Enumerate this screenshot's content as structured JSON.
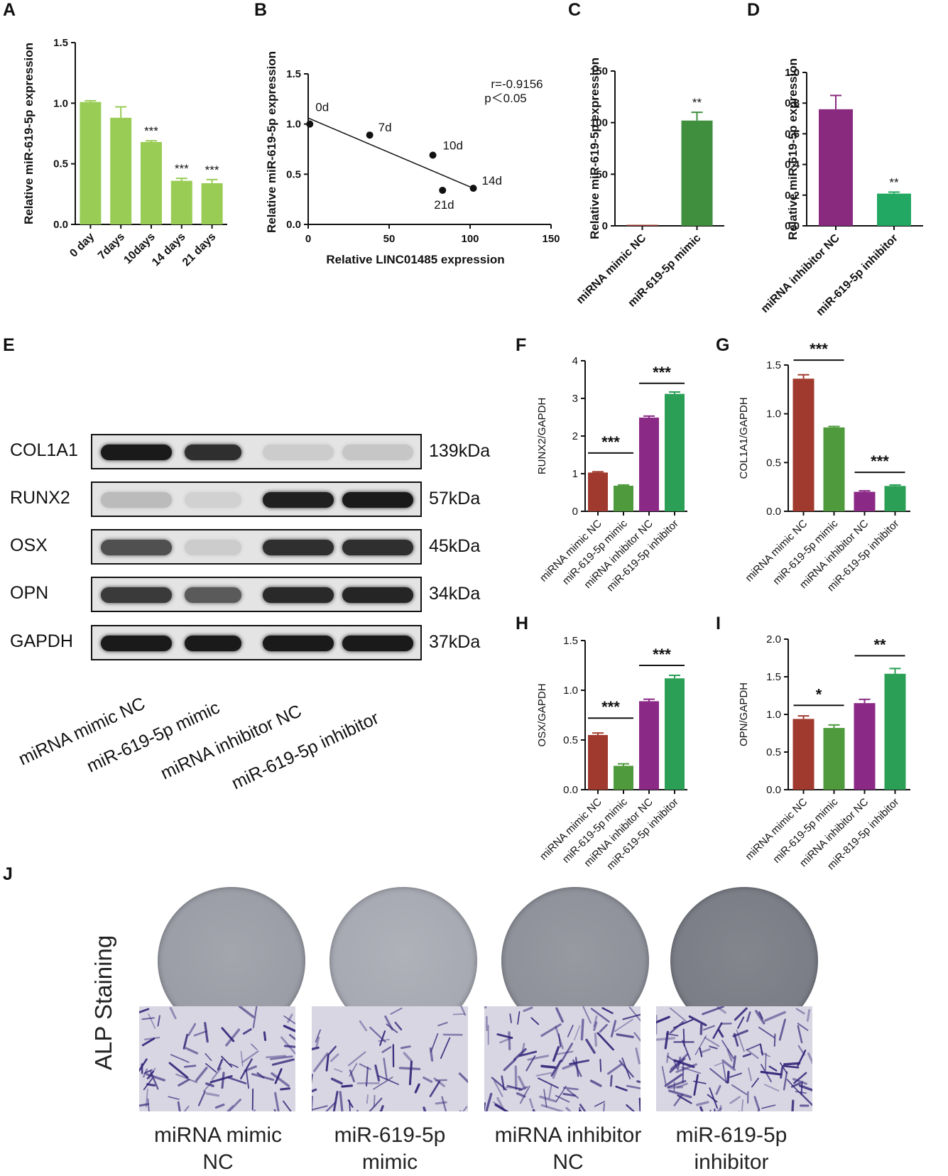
{
  "panels": {
    "A": "A",
    "B": "B",
    "C": "C",
    "D": "D",
    "E": "E",
    "F": "F",
    "G": "G",
    "H": "H",
    "I": "I",
    "J": "J"
  },
  "colors": {
    "lightgreen": "#99cc55",
    "darkgreen": "#3f8f3f",
    "purple": "#8a2a7f",
    "mint": "#22a862",
    "red": "#a03a2e",
    "green2": "#4e9a3c",
    "purple2": "#8a2a86",
    "green3": "#2a9f55"
  },
  "chart_data": [
    {
      "id": "A",
      "type": "bar",
      "ylabel": "Relative miR-619-5p  expression",
      "ylim": [
        0,
        1.5
      ],
      "yticks": [
        "0.0",
        "0.5",
        "1.0",
        "1.5"
      ],
      "categories": [
        "0 day",
        "7days",
        "10days",
        "14 days",
        "21 days"
      ],
      "values": [
        1.01,
        0.88,
        0.68,
        0.36,
        0.34
      ],
      "errors": [
        0.01,
        0.09,
        0.01,
        0.02,
        0.03
      ],
      "significance": [
        "",
        "",
        "***",
        "***",
        "***"
      ],
      "color": "#99cc55"
    },
    {
      "id": "B",
      "type": "scatter",
      "xlabel": "Relative LINC01485  expression",
      "ylabel": "Relative miR-619-5p  expression",
      "xlim": [
        0,
        150
      ],
      "ylim": [
        0,
        1.5
      ],
      "xticks": [
        "0",
        "50",
        "100",
        "150"
      ],
      "yticks": [
        "0.0",
        "0.5",
        "1.0",
        "1.5"
      ],
      "points": [
        {
          "label": "0d",
          "x": 1,
          "y": 1.0
        },
        {
          "label": "7d",
          "x": 38,
          "y": 0.89
        },
        {
          "label": "10d",
          "x": 77,
          "y": 0.69
        },
        {
          "label": "14d",
          "x": 102,
          "y": 0.36
        },
        {
          "label": "21d",
          "x": 83,
          "y": 0.34
        }
      ],
      "fit": {
        "x0": 0,
        "y0": 1.06,
        "x1": 102,
        "y1": 0.36
      },
      "annotation": [
        "r=-0.9156",
        "p＜0.05"
      ]
    },
    {
      "id": "C",
      "type": "bar",
      "ylabel": "Relative miR-619-5p expression",
      "ylim": [
        0,
        150
      ],
      "yticks": [
        "0",
        "50",
        "100",
        "150"
      ],
      "categories": [
        "miRNA mimic NC",
        "miR-619-5p mimic"
      ],
      "values": [
        1,
        102
      ],
      "errors": [
        0,
        8
      ],
      "significance": [
        "",
        "**"
      ],
      "colors": [
        "#a03a2e",
        "#3f8f3f"
      ]
    },
    {
      "id": "D",
      "type": "bar",
      "ylabel": "Relative miR-619-5p expression",
      "ylim": [
        0,
        1.0
      ],
      "yticks": [
        "0.0",
        "0.2",
        "0.4",
        "0.6",
        "0.8",
        "1.0"
      ],
      "categories": [
        "miRNA inhibitor NC",
        "miR-619-5p inhibitor"
      ],
      "values": [
        0.76,
        0.21
      ],
      "errors": [
        0.09,
        0.01
      ],
      "significance": [
        "",
        "**"
      ],
      "colors": [
        "#8a2a7f",
        "#22a862"
      ]
    },
    {
      "id": "F",
      "type": "bar",
      "ylabel": "RUNX2/GAPDH",
      "ylim": [
        0,
        4
      ],
      "yticks": [
        "0",
        "1",
        "2",
        "3",
        "4"
      ],
      "categories": [
        "miRNA mimic NC",
        "miR-619-5p mimic",
        "miRNA inhibitor NC",
        "miR-619-5p inhibitor"
      ],
      "values": [
        1.03,
        0.68,
        2.49,
        3.12
      ],
      "errors": [
        0.02,
        0.02,
        0.04,
        0.05
      ],
      "brackets": [
        {
          "from": 0,
          "to": 1,
          "label": "***",
          "y": 1.55
        },
        {
          "from": 2,
          "to": 3,
          "label": "***",
          "y": 3.4
        }
      ]
    },
    {
      "id": "G",
      "type": "bar",
      "ylabel": "COL1A1/GAPDH",
      "ylim": [
        0,
        1.5
      ],
      "yticks": [
        "0.0",
        "0.5",
        "1.0",
        "1.5"
      ],
      "categories": [
        "miRNA mimic NC",
        "miR-619-5p mimic",
        "miRNA inhibitor NC",
        "miR-619-5p inhibitor"
      ],
      "values": [
        1.36,
        0.86,
        0.2,
        0.26
      ],
      "errors": [
        0.04,
        0.01,
        0.01,
        0.01
      ],
      "brackets": [
        {
          "from": 0,
          "to": 1,
          "label": "***",
          "y": 1.55
        },
        {
          "from": 2,
          "to": 3,
          "label": "***",
          "y": 0.4
        }
      ]
    },
    {
      "id": "H",
      "type": "bar",
      "ylabel": "OSX/GAPDH",
      "ylim": [
        0,
        1.5
      ],
      "yticks": [
        "0.0",
        "0.5",
        "1.0",
        "1.5"
      ],
      "categories": [
        "miRNA mimic NC",
        "miR-619-5p mimic",
        "miRNA inhibitor NC",
        "miR-619-5p inhibitor"
      ],
      "values": [
        0.55,
        0.24,
        0.89,
        1.12
      ],
      "errors": [
        0.02,
        0.02,
        0.02,
        0.03
      ],
      "brackets": [
        {
          "from": 0,
          "to": 1,
          "label": "***",
          "y": 0.72
        },
        {
          "from": 2,
          "to": 3,
          "label": "***",
          "y": 1.25
        }
      ]
    },
    {
      "id": "I",
      "type": "bar",
      "ylabel": "OPN/GAPDH",
      "ylim": [
        0,
        2.0
      ],
      "yticks": [
        "0.0",
        "0.5",
        "1.0",
        "1.5",
        "2.0"
      ],
      "categories": [
        "miRNA mimic NC",
        "miR-619-5p mimic",
        "miRNA inhibitor NC",
        "miR-819-5p inhibitor"
      ],
      "values": [
        0.94,
        0.82,
        1.15,
        1.54
      ],
      "errors": [
        0.04,
        0.04,
        0.05,
        0.07
      ],
      "brackets": [
        {
          "from": 0,
          "to": 1,
          "label": "*",
          "y": 1.12
        },
        {
          "from": 2,
          "to": 3,
          "label": "**",
          "y": 1.78
        }
      ]
    }
  ],
  "blot": {
    "rows": [
      {
        "protein": "COL1A1",
        "kda": "139kDa",
        "intensity": [
          0.95,
          0.85,
          0.12,
          0.15
        ]
      },
      {
        "protein": "RUNX2",
        "kda": "57kDa",
        "intensity": [
          0.2,
          0.1,
          0.92,
          0.95
        ]
      },
      {
        "protein": "OSX",
        "kda": "45kDa",
        "intensity": [
          0.7,
          0.12,
          0.85,
          0.85
        ]
      },
      {
        "protein": "OPN",
        "kda": "34kDa",
        "intensity": [
          0.8,
          0.65,
          0.88,
          0.9
        ]
      },
      {
        "protein": "GAPDH",
        "kda": "37kDa",
        "intensity": [
          0.95,
          0.95,
          0.95,
          0.95
        ]
      }
    ],
    "lanes": [
      "miRNA mimic NC",
      "miR-619-5p mimic",
      "miRNA inhibitor NC",
      "miR-619-5p inhibitor"
    ]
  },
  "alp": {
    "side_label": "ALP Staining",
    "captions": [
      "miRNA mimic\nNC",
      "miR-619-5p\nmimic",
      "miRNA inhibitor\nNC",
      "miR-619-5p\ninhibitor"
    ],
    "stain_level": [
      0.45,
      0.3,
      0.6,
      0.85
    ]
  }
}
